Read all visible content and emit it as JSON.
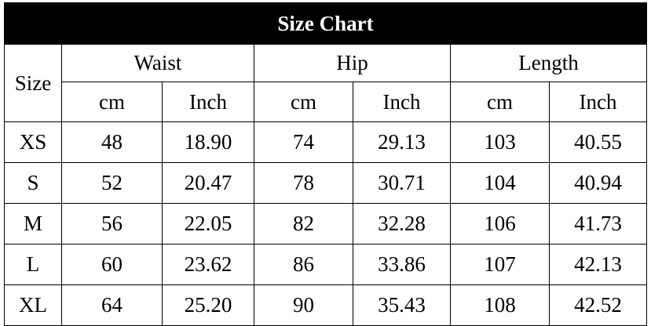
{
  "title": "Size Chart",
  "headers": {
    "size": "Size",
    "groups": [
      "Waist",
      "Hip",
      "Length"
    ],
    "units": [
      "cm",
      "Inch",
      "cm",
      "Inch",
      "cm",
      "Inch"
    ]
  },
  "rows": [
    [
      "XS",
      "48",
      "18.90",
      "74",
      "29.13",
      "103",
      "40.55"
    ],
    [
      "S",
      "52",
      "20.47",
      "78",
      "30.71",
      "104",
      "40.94"
    ],
    [
      "M",
      "56",
      "22.05",
      "82",
      "32.28",
      "106",
      "41.73"
    ],
    [
      "L",
      "60",
      "23.62",
      "86",
      "33.86",
      "107",
      "42.13"
    ],
    [
      "XL",
      "64",
      "25.20",
      "90",
      "35.43",
      "108",
      "42.52"
    ]
  ]
}
